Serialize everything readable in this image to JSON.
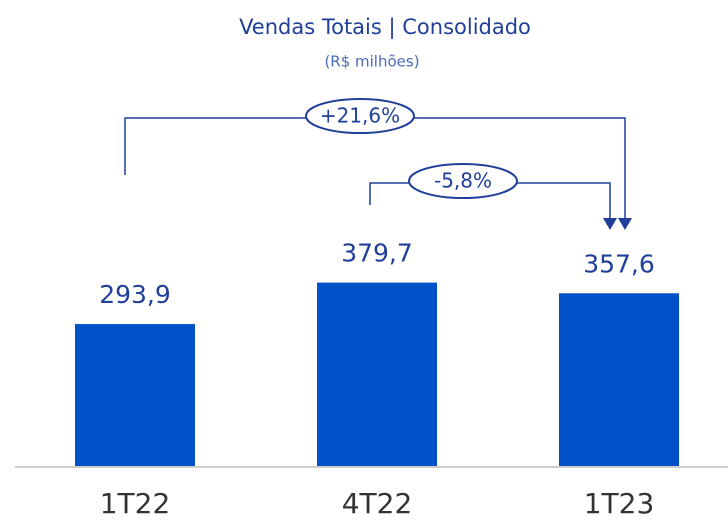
{
  "chart_data": {
    "type": "bar",
    "title": "Vendas Totais | Consolidado",
    "subtitle": "(R$ milhões)",
    "categories": [
      "1T22",
      "4T22",
      "1T23"
    ],
    "values": [
      293.9,
      379.7,
      357.6
    ],
    "value_labels": [
      "293,9",
      "379,7",
      "357,6"
    ],
    "color": "#0050c8",
    "annotations": [
      "+21,6%",
      "-5,8%"
    ]
  }
}
